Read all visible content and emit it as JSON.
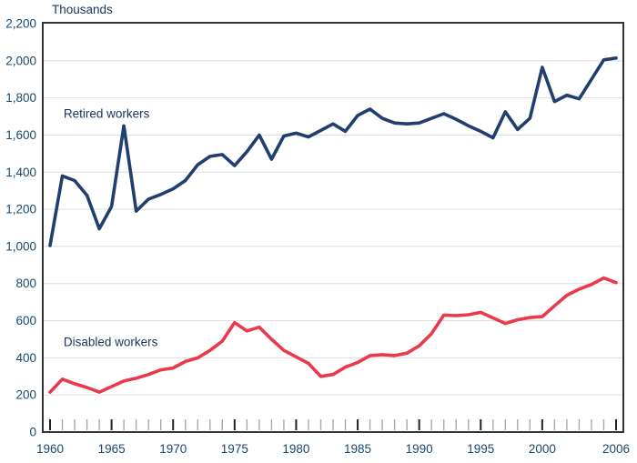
{
  "chart_data": {
    "type": "line",
    "title": "Thousands",
    "ylabel": "Thousands",
    "xlabel": "",
    "ylim": [
      0,
      2200
    ],
    "ytick_step": 200,
    "grid": "horizontal-light-gray",
    "legend_position": "inline-labels",
    "axis_text_color": "#17486F",
    "label_text_color": "#17365D",
    "frame_color": "#333333",
    "gridline_color": "#DEDEDE",
    "minor_tick_color": "#A8A8A8",
    "major_tick_color": "#222222",
    "x": [
      1960,
      1961,
      1962,
      1963,
      1964,
      1965,
      1966,
      1967,
      1968,
      1969,
      1970,
      1971,
      1972,
      1973,
      1974,
      1975,
      1976,
      1977,
      1978,
      1979,
      1980,
      1981,
      1982,
      1983,
      1984,
      1985,
      1986,
      1987,
      1988,
      1989,
      1990,
      1991,
      1992,
      1993,
      1994,
      1995,
      1996,
      1997,
      1998,
      1999,
      2000,
      2001,
      2002,
      2003,
      2004,
      2005,
      2006
    ],
    "xtick_labels": [
      1960,
      1965,
      1970,
      1975,
      1980,
      1985,
      1990,
      1995,
      2000,
      2006
    ],
    "series": [
      {
        "name": "Retired workers",
        "color": "#203E6E",
        "label_anchor": {
          "year": 1961.1,
          "value": 1715
        },
        "values": [
          1005,
          1380,
          1355,
          1275,
          1095,
          1215,
          1650,
          1190,
          1255,
          1280,
          1310,
          1355,
          1440,
          1485,
          1495,
          1435,
          1510,
          1600,
          1470,
          1595,
          1610,
          1590,
          1625,
          1660,
          1620,
          1705,
          1740,
          1690,
          1665,
          1660,
          1665,
          1690,
          1715,
          1685,
          1650,
          1620,
          1585,
          1725,
          1630,
          1690,
          1965,
          1780,
          1815,
          1795,
          1900,
          2005,
          2015
        ]
      },
      {
        "name": "Disabled workers",
        "color": "#E83A4B",
        "label_anchor": {
          "year": 1961.1,
          "value": 485
        },
        "values": [
          215,
          285,
          260,
          240,
          215,
          245,
          275,
          290,
          310,
          335,
          345,
          380,
          400,
          440,
          490,
          590,
          545,
          565,
          500,
          440,
          405,
          370,
          300,
          310,
          350,
          375,
          412,
          417,
          412,
          425,
          465,
          530,
          630,
          627,
          632,
          645,
          615,
          585,
          605,
          617,
          622,
          680,
          737,
          770,
          795,
          830,
          805
        ]
      }
    ]
  }
}
